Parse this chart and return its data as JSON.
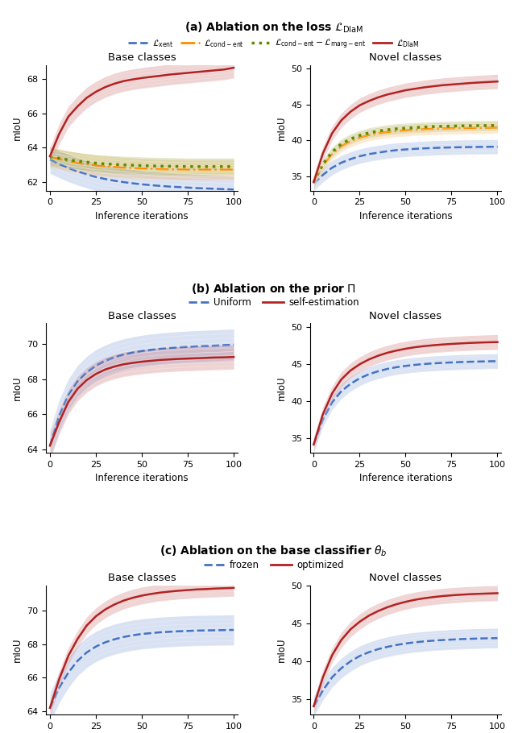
{
  "x": [
    0,
    5,
    10,
    15,
    20,
    25,
    30,
    35,
    40,
    45,
    50,
    55,
    60,
    65,
    70,
    75,
    80,
    85,
    90,
    95,
    100
  ],
  "a_base_DIaM": [
    63.5,
    64.8,
    65.8,
    66.4,
    66.9,
    67.25,
    67.52,
    67.72,
    67.87,
    67.97,
    68.05,
    68.12,
    68.18,
    68.25,
    68.3,
    68.35,
    68.4,
    68.45,
    68.5,
    68.55,
    68.65
  ],
  "a_base_DIaM_lo": [
    63.0,
    64.2,
    65.2,
    65.8,
    66.3,
    66.65,
    66.92,
    67.12,
    67.27,
    67.37,
    67.45,
    67.52,
    67.58,
    67.65,
    67.7,
    67.75,
    67.8,
    67.85,
    67.9,
    67.95,
    68.05
  ],
  "a_base_DIaM_hi": [
    64.0,
    65.4,
    66.4,
    67.0,
    67.5,
    67.85,
    68.12,
    68.32,
    68.47,
    68.57,
    68.65,
    68.72,
    68.78,
    68.85,
    68.9,
    68.95,
    69.0,
    69.05,
    69.1,
    69.15,
    69.25
  ],
  "a_base_cond": [
    63.45,
    63.35,
    63.22,
    63.12,
    63.04,
    62.97,
    62.92,
    62.88,
    62.84,
    62.81,
    62.79,
    62.77,
    62.75,
    62.74,
    62.73,
    62.72,
    62.72,
    62.72,
    62.72,
    62.72,
    62.72
  ],
  "a_base_cond_lo": [
    62.85,
    62.75,
    62.62,
    62.52,
    62.44,
    62.37,
    62.32,
    62.28,
    62.24,
    62.21,
    62.19,
    62.17,
    62.15,
    62.14,
    62.13,
    62.12,
    62.12,
    62.12,
    62.12,
    62.12,
    62.12
  ],
  "a_base_cond_hi": [
    64.05,
    63.95,
    63.82,
    63.72,
    63.64,
    63.57,
    63.52,
    63.48,
    63.44,
    63.41,
    63.39,
    63.37,
    63.35,
    63.34,
    63.33,
    63.32,
    63.32,
    63.32,
    63.32,
    63.32,
    63.32
  ],
  "a_base_condmarg": [
    63.45,
    63.38,
    63.3,
    63.22,
    63.16,
    63.1,
    63.06,
    63.03,
    63.0,
    62.98,
    62.96,
    62.94,
    62.93,
    62.92,
    62.91,
    62.9,
    62.9,
    62.9,
    62.9,
    62.9,
    62.9
  ],
  "a_base_condmarg_lo": [
    62.95,
    62.88,
    62.8,
    62.72,
    62.66,
    62.6,
    62.56,
    62.53,
    62.5,
    62.48,
    62.46,
    62.44,
    62.43,
    62.42,
    62.41,
    62.4,
    62.4,
    62.4,
    62.4,
    62.4,
    62.4
  ],
  "a_base_condmarg_hi": [
    63.95,
    63.88,
    63.8,
    63.72,
    63.66,
    63.6,
    63.56,
    63.53,
    63.5,
    63.48,
    63.46,
    63.44,
    63.43,
    63.42,
    63.41,
    63.4,
    63.4,
    63.4,
    63.4,
    63.4,
    63.4
  ],
  "a_base_xent": [
    63.3,
    63.05,
    62.82,
    62.62,
    62.45,
    62.3,
    62.18,
    62.08,
    62.0,
    61.93,
    61.87,
    61.82,
    61.78,
    61.74,
    61.71,
    61.68,
    61.65,
    61.63,
    61.61,
    61.59,
    61.57
  ],
  "a_base_xent_lo": [
    62.5,
    62.25,
    62.02,
    61.82,
    61.65,
    61.5,
    61.38,
    61.28,
    61.2,
    61.13,
    61.07,
    61.02,
    60.98,
    60.94,
    60.91,
    60.88,
    60.85,
    60.83,
    60.81,
    60.79,
    60.77
  ],
  "a_base_xent_hi": [
    64.1,
    63.85,
    63.62,
    63.42,
    63.25,
    63.1,
    62.98,
    62.88,
    62.8,
    62.73,
    62.67,
    62.62,
    62.58,
    62.54,
    62.51,
    62.48,
    62.45,
    62.43,
    62.41,
    62.39,
    62.37
  ],
  "a_novel_DIaM": [
    34.2,
    38.2,
    41.0,
    42.8,
    44.0,
    44.9,
    45.5,
    46.0,
    46.4,
    46.7,
    47.0,
    47.2,
    47.4,
    47.55,
    47.7,
    47.8,
    47.9,
    48.0,
    48.08,
    48.15,
    48.22
  ],
  "a_novel_DIaM_lo": [
    33.2,
    37.2,
    40.0,
    41.8,
    43.0,
    43.9,
    44.5,
    45.0,
    45.4,
    45.7,
    46.0,
    46.2,
    46.4,
    46.55,
    46.7,
    46.8,
    46.9,
    47.0,
    47.08,
    47.15,
    47.22
  ],
  "a_novel_DIaM_hi": [
    35.2,
    39.2,
    42.0,
    43.8,
    45.0,
    45.9,
    46.5,
    47.0,
    47.4,
    47.7,
    48.0,
    48.2,
    48.4,
    48.55,
    48.7,
    48.8,
    48.9,
    49.0,
    49.08,
    49.15,
    49.22
  ],
  "a_novel_cond": [
    34.2,
    36.5,
    38.1,
    39.2,
    39.9,
    40.4,
    40.75,
    41.0,
    41.18,
    41.32,
    41.42,
    41.5,
    41.57,
    41.63,
    41.67,
    41.7,
    41.73,
    41.75,
    41.77,
    41.78,
    41.8
  ],
  "a_novel_cond_lo": [
    33.4,
    35.7,
    37.3,
    38.4,
    39.1,
    39.6,
    39.95,
    40.2,
    40.38,
    40.52,
    40.62,
    40.7,
    40.77,
    40.83,
    40.87,
    40.9,
    40.93,
    40.95,
    40.97,
    40.98,
    41.0
  ],
  "a_novel_cond_hi": [
    35.0,
    37.3,
    38.9,
    40.0,
    40.7,
    41.2,
    41.55,
    41.8,
    41.98,
    42.12,
    42.22,
    42.3,
    42.37,
    42.43,
    42.47,
    42.5,
    42.53,
    42.55,
    42.57,
    42.58,
    42.6
  ],
  "a_novel_condmarg": [
    34.2,
    36.7,
    38.4,
    39.5,
    40.2,
    40.7,
    41.05,
    41.3,
    41.48,
    41.62,
    41.72,
    41.8,
    41.87,
    41.93,
    41.97,
    42.0,
    42.03,
    42.05,
    42.07,
    42.08,
    42.1
  ],
  "a_novel_condmarg_lo": [
    33.5,
    36.0,
    37.7,
    38.8,
    39.5,
    40.0,
    40.35,
    40.6,
    40.78,
    40.92,
    41.02,
    41.1,
    41.17,
    41.23,
    41.27,
    41.3,
    41.33,
    41.35,
    41.37,
    41.38,
    41.4
  ],
  "a_novel_condmarg_hi": [
    34.9,
    37.4,
    39.1,
    40.2,
    40.9,
    41.4,
    41.75,
    42.0,
    42.18,
    42.32,
    42.42,
    42.5,
    42.57,
    42.63,
    42.67,
    42.7,
    42.73,
    42.75,
    42.77,
    42.78,
    42.8
  ],
  "a_novel_xent": [
    34.0,
    35.2,
    36.2,
    36.9,
    37.4,
    37.8,
    38.1,
    38.3,
    38.5,
    38.65,
    38.75,
    38.83,
    38.9,
    38.95,
    39.0,
    39.03,
    39.06,
    39.08,
    39.1,
    39.12,
    39.13
  ],
  "a_novel_xent_lo": [
    33.0,
    34.2,
    35.2,
    35.9,
    36.4,
    36.8,
    37.1,
    37.3,
    37.5,
    37.65,
    37.75,
    37.83,
    37.9,
    37.95,
    38.0,
    38.03,
    38.06,
    38.08,
    38.1,
    38.12,
    38.13
  ],
  "a_novel_xent_hi": [
    35.0,
    36.2,
    37.2,
    37.9,
    38.4,
    38.8,
    39.1,
    39.3,
    39.5,
    39.65,
    39.75,
    39.83,
    39.9,
    39.95,
    40.0,
    40.03,
    40.06,
    40.08,
    40.1,
    40.12,
    40.13
  ],
  "b_base_red": [
    64.2,
    65.55,
    66.7,
    67.45,
    67.95,
    68.3,
    68.55,
    68.72,
    68.85,
    68.93,
    69.0,
    69.05,
    69.1,
    69.13,
    69.16,
    69.18,
    69.2,
    69.22,
    69.24,
    69.25,
    69.27
  ],
  "b_base_red_lo": [
    63.5,
    64.85,
    66.0,
    66.75,
    67.25,
    67.6,
    67.85,
    68.02,
    68.15,
    68.23,
    68.3,
    68.35,
    68.4,
    68.43,
    68.46,
    68.48,
    68.5,
    68.52,
    68.54,
    68.55,
    68.57
  ],
  "b_base_red_hi": [
    64.9,
    66.25,
    67.4,
    68.15,
    68.65,
    69.0,
    69.25,
    69.42,
    69.55,
    69.63,
    69.7,
    69.75,
    69.8,
    69.83,
    69.86,
    69.88,
    69.9,
    69.92,
    69.94,
    69.95,
    69.97
  ],
  "b_base_blue": [
    64.2,
    65.9,
    67.1,
    67.88,
    68.4,
    68.78,
    69.05,
    69.25,
    69.4,
    69.52,
    69.61,
    69.68,
    69.74,
    69.78,
    69.82,
    69.85,
    69.88,
    69.9,
    69.92,
    69.95,
    69.97
  ],
  "b_base_blue_lo": [
    63.3,
    65.0,
    66.2,
    66.98,
    67.5,
    67.88,
    68.15,
    68.35,
    68.5,
    68.62,
    68.71,
    68.78,
    68.84,
    68.88,
    68.92,
    68.95,
    68.98,
    69.0,
    69.02,
    69.05,
    69.07
  ],
  "b_base_blue_hi": [
    65.1,
    66.8,
    68.0,
    68.78,
    69.3,
    69.68,
    69.95,
    70.15,
    70.3,
    70.42,
    70.51,
    70.58,
    70.64,
    70.68,
    70.72,
    70.75,
    70.78,
    70.8,
    70.82,
    70.85,
    70.87
  ],
  "b_novel_red": [
    34.1,
    38.2,
    41.0,
    42.9,
    44.1,
    44.95,
    45.6,
    46.1,
    46.5,
    46.8,
    47.05,
    47.25,
    47.4,
    47.52,
    47.62,
    47.7,
    47.77,
    47.83,
    47.88,
    47.92,
    47.95
  ],
  "b_novel_red_lo": [
    33.1,
    37.2,
    40.0,
    41.9,
    43.1,
    43.95,
    44.6,
    45.1,
    45.5,
    45.8,
    46.05,
    46.25,
    46.4,
    46.52,
    46.62,
    46.7,
    46.77,
    46.83,
    46.88,
    46.92,
    46.95
  ],
  "b_novel_red_hi": [
    35.1,
    39.2,
    42.0,
    43.9,
    45.1,
    45.95,
    46.6,
    47.1,
    47.5,
    47.8,
    48.05,
    48.25,
    48.4,
    48.52,
    48.62,
    48.7,
    48.77,
    48.83,
    48.88,
    48.92,
    48.95
  ],
  "b_novel_blue": [
    34.1,
    37.5,
    39.8,
    41.3,
    42.3,
    43.05,
    43.6,
    44.0,
    44.32,
    44.55,
    44.73,
    44.87,
    44.98,
    45.07,
    45.14,
    45.2,
    45.25,
    45.29,
    45.32,
    45.35,
    45.37
  ],
  "b_novel_blue_lo": [
    33.1,
    36.5,
    38.8,
    40.3,
    41.3,
    42.05,
    42.6,
    43.0,
    43.32,
    43.55,
    43.73,
    43.87,
    43.98,
    44.07,
    44.14,
    44.2,
    44.25,
    44.29,
    44.32,
    44.35,
    44.37
  ],
  "b_novel_blue_hi": [
    35.1,
    38.5,
    40.8,
    42.3,
    43.3,
    44.05,
    44.6,
    45.0,
    45.32,
    45.55,
    45.73,
    45.87,
    45.98,
    46.07,
    46.14,
    46.2,
    46.25,
    46.29,
    46.32,
    46.35,
    46.37
  ],
  "c_base_red": [
    64.2,
    65.9,
    67.3,
    68.3,
    69.1,
    69.65,
    70.05,
    70.35,
    70.58,
    70.75,
    70.88,
    70.98,
    71.06,
    71.12,
    71.17,
    71.21,
    71.25,
    71.27,
    71.3,
    71.32,
    71.34
  ],
  "c_base_red_lo": [
    63.7,
    65.4,
    66.8,
    67.8,
    68.6,
    69.15,
    69.55,
    69.85,
    70.08,
    70.25,
    70.38,
    70.48,
    70.56,
    70.62,
    70.67,
    70.71,
    70.75,
    70.77,
    70.8,
    70.82,
    70.84
  ],
  "c_base_red_hi": [
    64.7,
    66.4,
    67.8,
    68.8,
    69.6,
    70.15,
    70.55,
    70.85,
    71.08,
    71.25,
    71.38,
    71.48,
    71.56,
    71.62,
    71.67,
    71.71,
    71.75,
    71.77,
    71.8,
    71.82,
    71.84
  ],
  "c_base_blue": [
    64.2,
    65.4,
    66.3,
    67.0,
    67.5,
    67.85,
    68.1,
    68.28,
    68.42,
    68.52,
    68.6,
    68.65,
    68.7,
    68.73,
    68.76,
    68.78,
    68.8,
    68.81,
    68.82,
    68.83,
    68.84
  ],
  "c_base_blue_lo": [
    63.3,
    64.5,
    65.4,
    66.1,
    66.6,
    66.95,
    67.2,
    67.38,
    67.52,
    67.62,
    67.7,
    67.75,
    67.8,
    67.83,
    67.86,
    67.88,
    67.9,
    67.91,
    67.92,
    67.93,
    67.94
  ],
  "c_base_blue_hi": [
    65.1,
    66.3,
    67.2,
    67.9,
    68.4,
    68.75,
    69.0,
    69.18,
    69.32,
    69.42,
    69.5,
    69.55,
    69.6,
    69.63,
    69.66,
    69.68,
    69.7,
    69.71,
    69.72,
    69.73,
    69.74
  ],
  "c_novel_red": [
    34.1,
    37.9,
    40.8,
    42.8,
    44.2,
    45.2,
    46.0,
    46.6,
    47.1,
    47.5,
    47.82,
    48.08,
    48.28,
    48.44,
    48.57,
    48.67,
    48.75,
    48.82,
    48.87,
    48.91,
    48.95
  ],
  "c_novel_red_lo": [
    33.1,
    36.9,
    39.8,
    41.8,
    43.2,
    44.2,
    45.0,
    45.6,
    46.1,
    46.5,
    46.82,
    47.08,
    47.28,
    47.44,
    47.57,
    47.67,
    47.75,
    47.82,
    47.87,
    47.91,
    47.95
  ],
  "c_novel_red_hi": [
    35.1,
    38.9,
    41.8,
    43.8,
    45.2,
    46.2,
    47.0,
    47.6,
    48.1,
    48.5,
    48.82,
    49.08,
    49.28,
    49.44,
    49.57,
    49.67,
    49.75,
    49.82,
    49.87,
    49.91,
    49.95
  ],
  "c_novel_blue": [
    34.1,
    36.2,
    37.9,
    39.1,
    40.0,
    40.7,
    41.2,
    41.6,
    41.9,
    42.15,
    42.35,
    42.5,
    42.62,
    42.72,
    42.8,
    42.86,
    42.92,
    42.96,
    43.0,
    43.03,
    43.05
  ],
  "c_novel_blue_lo": [
    32.8,
    34.9,
    36.6,
    37.8,
    38.7,
    39.4,
    39.9,
    40.3,
    40.6,
    40.85,
    41.05,
    41.2,
    41.32,
    41.42,
    41.5,
    41.56,
    41.62,
    41.66,
    41.7,
    41.73,
    41.75
  ],
  "c_novel_blue_hi": [
    35.4,
    37.5,
    39.2,
    40.4,
    41.3,
    42.0,
    42.5,
    42.9,
    43.2,
    43.45,
    43.65,
    43.8,
    43.92,
    44.02,
    44.1,
    44.16,
    44.22,
    44.26,
    44.3,
    44.33,
    44.35
  ],
  "a_ylim_base": [
    61.5,
    68.8
  ],
  "a_yticks_base": [
    62.0,
    64.0,
    66.0,
    68.0
  ],
  "a_ylim_novel": [
    33.0,
    50.5
  ],
  "a_yticks_novel": [
    35.0,
    40.0,
    45.0,
    50.0
  ],
  "b_ylim_base": [
    63.8,
    71.2
  ],
  "b_yticks_base": [
    64.0,
    66.0,
    68.0,
    70.0
  ],
  "b_ylim_novel": [
    33.0,
    50.5
  ],
  "b_yticks_novel": [
    35.0,
    40.0,
    45.0,
    50.0
  ],
  "c_ylim_base": [
    63.8,
    71.5
  ],
  "c_yticks_base": [
    64.0,
    66.0,
    68.0,
    70.0
  ],
  "c_ylim_novel": [
    33.0,
    50.0
  ],
  "c_yticks_novel": [
    35.0,
    40.0,
    45.0,
    50.0
  ],
  "colors": {
    "red": "#B22222",
    "blue": "#4472C4",
    "orange": "#FF8C00",
    "green": "#5C8A00"
  },
  "alpha_fill": 0.2,
  "alpha_fill_wide": 0.12
}
